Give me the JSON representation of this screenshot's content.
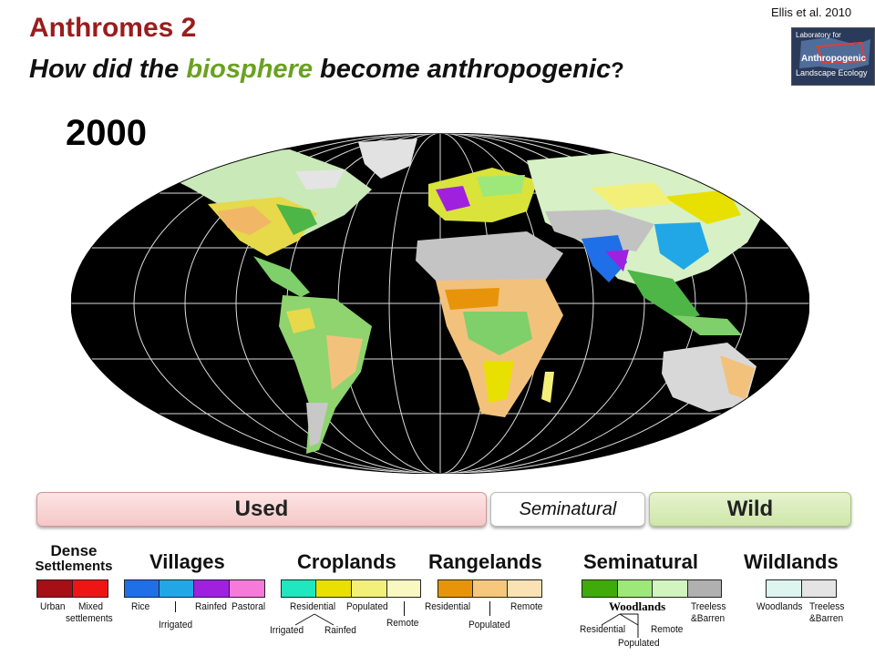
{
  "header": {
    "title": "Anthromes 2",
    "subtitle_before": "How did the ",
    "subtitle_highlight": "biosphere",
    "subtitle_after": " become anthropogenic",
    "subtitle_end": "?",
    "citation": "Ellis et al. 2010",
    "logo_line1": "Laboratory for",
    "logo_line2": "Anthropogenic",
    "logo_line3": "Landscape Ecology"
  },
  "map": {
    "year": "2000"
  },
  "bars": {
    "used": "Used",
    "seminatural": "Seminatural",
    "wild": "Wild"
  },
  "groups": {
    "dense": {
      "title_line1": "Dense",
      "title_line2": "Settlements",
      "labels": [
        "Urban",
        "Mixed",
        "settlements"
      ]
    },
    "villages": {
      "title": "Villages",
      "labels": [
        "Rice",
        "Irrigated",
        "Rainfed",
        "Pastoral"
      ]
    },
    "croplands": {
      "title": "Croplands",
      "labels": [
        "Residential",
        "Populated",
        "Remote",
        "Irrigated",
        "Rainfed"
      ]
    },
    "rangelands": {
      "title": "Rangelands",
      "labels": [
        "Residential",
        "Remote",
        "Populated"
      ]
    },
    "seminatural": {
      "title": "Seminatural",
      "woodlands": "Woodlands",
      "labels": [
        "Treeless",
        "&Barren",
        "Residential",
        "Remote",
        "Populated"
      ]
    },
    "wildlands": {
      "title": "Wildlands",
      "labels": [
        "Woodlands",
        "Treeless",
        "&Barren"
      ]
    }
  },
  "colors": {
    "urban": "#a50f15",
    "mixed_settlements": "#f01515",
    "villages_rice": "#1f6fe8",
    "villages_irrigated": "#22a7e6",
    "villages_rainfed": "#a020e0",
    "villages_pastoral": "#f57ad9",
    "crop_residential_irrigated": "#1fe8c0",
    "crop_residential_rainfed": "#e8e000",
    "crop_populated": "#f3f07a",
    "crop_remote": "#f9f7c2",
    "range_residential": "#e8940a",
    "range_populated": "#f8c77e",
    "range_remote": "#fbe2b4",
    "semi_residential_woodlands": "#3faa0a",
    "semi_populated_woodlands": "#9ee87a",
    "semi_remote_woodlands": "#d2f5c0",
    "semi_treeless_barren": "#b0b0b0",
    "wild_woodlands": "#ddf5ee",
    "wild_treeless_barren": "#e4e4e4"
  }
}
